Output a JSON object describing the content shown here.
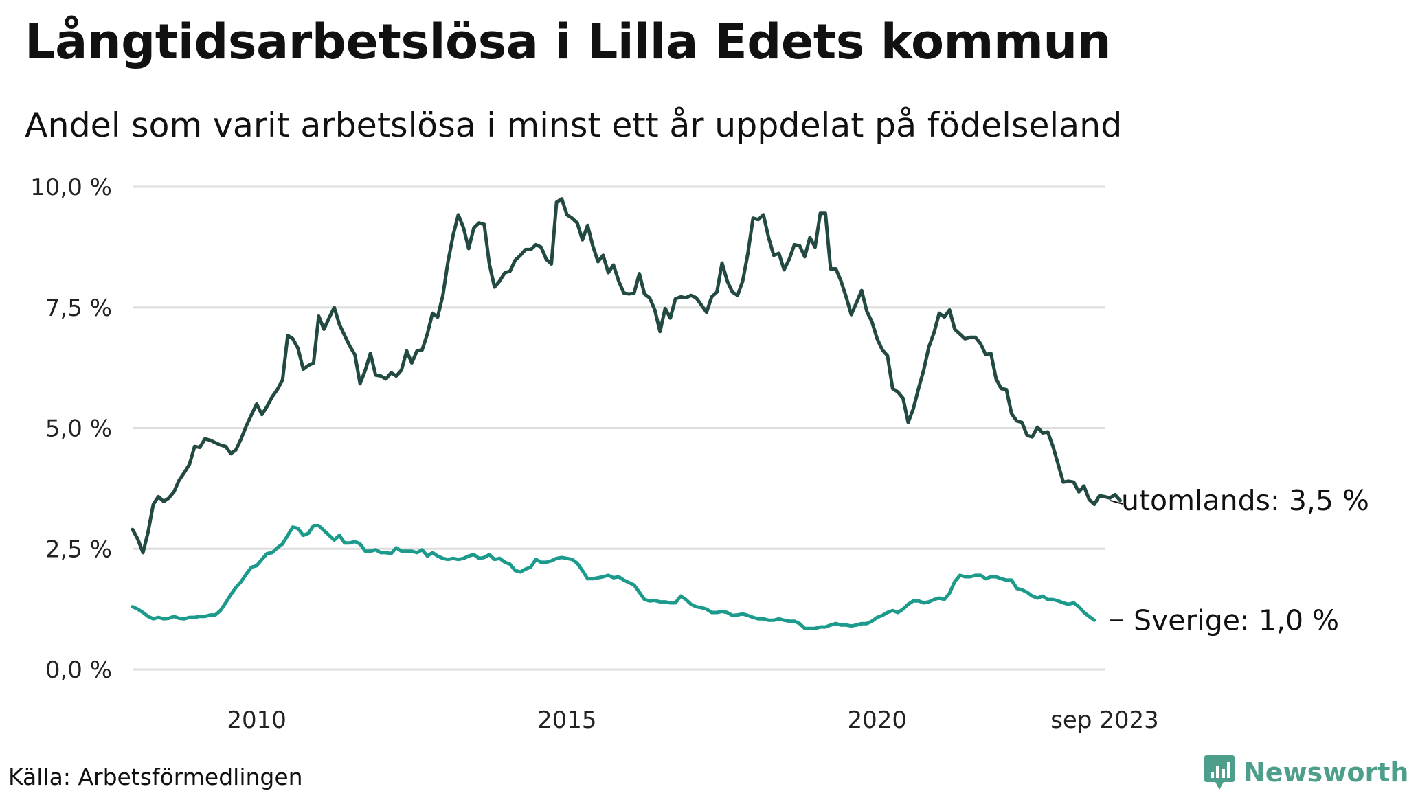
{
  "title": "Långtidsarbetslösa i Lilla Edets kommun",
  "subtitle": "Andel som varit arbetslösa i minst ett år uppdelat på födelseland",
  "source": "Källa: Arbetsförmedlingen",
  "brand": "Newsworthy",
  "colors": {
    "utomlands": "#234a42",
    "sverige": "#1c9a8c",
    "grid": "#dddddd",
    "brand": "#4e9e8c"
  },
  "chart_data": {
    "type": "line",
    "x_unit": "år",
    "x_start": 2008.0,
    "x_step_years": 0.08333,
    "xlim": [
      2008.0,
      2023.667
    ],
    "ylim": [
      0,
      10
    ],
    "grid": true,
    "y_ticks": [
      {
        "value": 0,
        "label": "0,0 %"
      },
      {
        "value": 2.5,
        "label": "2,5 %"
      },
      {
        "value": 5,
        "label": "5,0 %"
      },
      {
        "value": 7.5,
        "label": "7,5 %"
      },
      {
        "value": 10,
        "label": "10,0 %"
      }
    ],
    "x_ticks": [
      {
        "value": 2010,
        "label": "2010"
      },
      {
        "value": 2015,
        "label": "2015"
      },
      {
        "value": 2020,
        "label": "2020"
      },
      {
        "value": 2023.667,
        "label": "sep 2023"
      }
    ],
    "series": [
      {
        "name": "utomlands",
        "end_label": "utomlands: 3,5 %",
        "color": "#234a42",
        "values": [
          2.9,
          2.7,
          2.42,
          2.85,
          3.42,
          3.58,
          3.48,
          3.55,
          3.68,
          3.92,
          4.08,
          4.25,
          4.62,
          4.6,
          4.78,
          4.75,
          4.7,
          4.65,
          4.62,
          4.47,
          4.55,
          4.78,
          5.05,
          5.28,
          5.5,
          5.28,
          5.45,
          5.65,
          5.8,
          6.0,
          6.92,
          6.85,
          6.65,
          6.22,
          6.3,
          6.35,
          7.32,
          7.05,
          7.28,
          7.5,
          7.15,
          6.92,
          6.7,
          6.52,
          5.92,
          6.2,
          6.55,
          6.1,
          6.08,
          6.02,
          6.15,
          6.08,
          6.2,
          6.6,
          6.35,
          6.6,
          6.62,
          6.95,
          7.38,
          7.3,
          7.75,
          8.45,
          9.0,
          9.42,
          9.15,
          8.72,
          9.15,
          9.25,
          9.22,
          8.4,
          7.92,
          8.05,
          8.22,
          8.25,
          8.48,
          8.58,
          8.7,
          8.7,
          8.8,
          8.75,
          8.5,
          8.4,
          9.68,
          9.75,
          9.42,
          9.35,
          9.25,
          8.9,
          9.2,
          8.78,
          8.45,
          8.58,
          8.22,
          8.38,
          8.05,
          7.8,
          7.78,
          7.8,
          8.2,
          7.78,
          7.7,
          7.45,
          7.0,
          7.48,
          7.28,
          7.68,
          7.72,
          7.7,
          7.75,
          7.7,
          7.55,
          7.4,
          7.72,
          7.82,
          8.42,
          8.05,
          7.82,
          7.75,
          8.05,
          8.62,
          9.35,
          9.32,
          9.42,
          8.95,
          8.58,
          8.62,
          8.28,
          8.5,
          8.8,
          8.78,
          8.55,
          8.95,
          8.75,
          9.45,
          9.45,
          8.3,
          8.3,
          8.05,
          7.72,
          7.35,
          7.6,
          7.85,
          7.42,
          7.2,
          6.85,
          6.62,
          6.5,
          5.82,
          5.75,
          5.62,
          5.12,
          5.4,
          5.82,
          6.2,
          6.68,
          6.98,
          7.38,
          7.3,
          7.45,
          7.05,
          6.95,
          6.85,
          6.88,
          6.88,
          6.75,
          6.52,
          6.55,
          6.02,
          5.82,
          5.8,
          5.3,
          5.15,
          5.12,
          4.85,
          4.82,
          5.02,
          4.9,
          4.92,
          4.62,
          4.25,
          3.88,
          3.9,
          3.88,
          3.68,
          3.8,
          3.52,
          3.42,
          3.6,
          3.58,
          3.55,
          3.62,
          3.5
        ]
      },
      {
        "name": "Sverige",
        "end_label": "Sverige: 1,0 %",
        "color": "#1c9a8c",
        "values": [
          1.3,
          1.25,
          1.18,
          1.1,
          1.05,
          1.08,
          1.05,
          1.06,
          1.1,
          1.06,
          1.05,
          1.08,
          1.08,
          1.1,
          1.1,
          1.13,
          1.13,
          1.22,
          1.38,
          1.55,
          1.7,
          1.82,
          1.98,
          2.12,
          2.15,
          2.28,
          2.4,
          2.42,
          2.52,
          2.6,
          2.78,
          2.95,
          2.92,
          2.78,
          2.82,
          2.98,
          2.98,
          2.88,
          2.78,
          2.68,
          2.78,
          2.62,
          2.62,
          2.65,
          2.6,
          2.45,
          2.45,
          2.48,
          2.42,
          2.42,
          2.4,
          2.52,
          2.45,
          2.45,
          2.45,
          2.42,
          2.48,
          2.35,
          2.42,
          2.35,
          2.3,
          2.28,
          2.3,
          2.28,
          2.3,
          2.35,
          2.38,
          2.3,
          2.32,
          2.38,
          2.28,
          2.3,
          2.22,
          2.18,
          2.05,
          2.02,
          2.08,
          2.12,
          2.28,
          2.22,
          2.22,
          2.25,
          2.3,
          2.32,
          2.3,
          2.28,
          2.2,
          2.05,
          1.88,
          1.88,
          1.9,
          1.92,
          1.95,
          1.9,
          1.92,
          1.85,
          1.8,
          1.75,
          1.6,
          1.45,
          1.42,
          1.43,
          1.4,
          1.4,
          1.38,
          1.38,
          1.52,
          1.45,
          1.35,
          1.3,
          1.28,
          1.25,
          1.18,
          1.18,
          1.2,
          1.18,
          1.12,
          1.13,
          1.15,
          1.12,
          1.08,
          1.05,
          1.05,
          1.02,
          1.02,
          1.05,
          1.02,
          1.0,
          1.0,
          0.95,
          0.85,
          0.85,
          0.85,
          0.88,
          0.88,
          0.92,
          0.95,
          0.92,
          0.92,
          0.9,
          0.92,
          0.95,
          0.95,
          1.0,
          1.08,
          1.12,
          1.18,
          1.22,
          1.18,
          1.25,
          1.35,
          1.42,
          1.42,
          1.38,
          1.4,
          1.45,
          1.48,
          1.45,
          1.58,
          1.82,
          1.95,
          1.92,
          1.92,
          1.95,
          1.95,
          1.88,
          1.92,
          1.92,
          1.88,
          1.85,
          1.85,
          1.68,
          1.65,
          1.6,
          1.52,
          1.48,
          1.52,
          1.45,
          1.45,
          1.42,
          1.38,
          1.35,
          1.38,
          1.3,
          1.18,
          1.1,
          1.02
        ]
      }
    ]
  }
}
